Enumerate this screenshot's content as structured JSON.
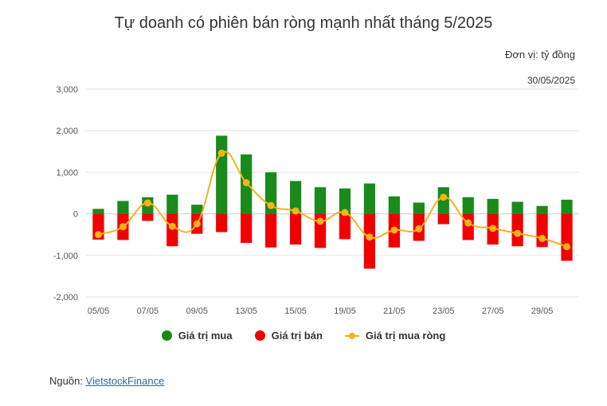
{
  "chart_data": {
    "type": "bar",
    "title": "Tự doanh có phiên bán ròng mạnh nhất tháng 5/2025",
    "unit_label": "Đơn vị: tỷ đồng",
    "date_label": "30/05/2025",
    "ylim": [
      -2000,
      3000
    ],
    "yticks": [
      -2000,
      -1000,
      0,
      1000,
      2000,
      3000
    ],
    "ytick_labels": [
      "-2,000",
      "-1,000",
      "0",
      "1,000",
      "2,000",
      "3,000"
    ],
    "x_tick_labels": [
      {
        "label": "05/05",
        "index": 0
      },
      {
        "label": "07/05",
        "index": 2
      },
      {
        "label": "09/05",
        "index": 4
      },
      {
        "label": "13/05",
        "index": 6
      },
      {
        "label": "15/05",
        "index": 8
      },
      {
        "label": "19/05",
        "index": 10
      },
      {
        "label": "21/05",
        "index": 12
      },
      {
        "label": "23/05",
        "index": 14
      },
      {
        "label": "27/05",
        "index": 16
      },
      {
        "label": "29/05",
        "index": 18
      }
    ],
    "categories": [
      "05/05",
      "06/05",
      "07/05",
      "08/05",
      "09/05",
      "12/05",
      "13/05",
      "14/05",
      "15/05",
      "16/05",
      "19/05",
      "20/05",
      "21/05",
      "22/05",
      "23/05",
      "26/05",
      "27/05",
      "28/05",
      "29/05",
      "30/05"
    ],
    "series": [
      {
        "name": "Giá trị mua",
        "type": "bar",
        "color": "#1a8a1a",
        "values": [
          120,
          310,
          400,
          460,
          220,
          1880,
          1430,
          1000,
          790,
          640,
          610,
          730,
          420,
          270,
          640,
          400,
          360,
          290,
          190,
          340
        ]
      },
      {
        "name": "Giá trị bán",
        "type": "bar",
        "color": "#f20000",
        "values": [
          -620,
          -630,
          -170,
          -780,
          -480,
          -440,
          -700,
          -810,
          -740,
          -820,
          -610,
          -1320,
          -810,
          -650,
          -250,
          -630,
          -740,
          -780,
          -800,
          -1130
        ]
      },
      {
        "name": "Giá trị mua ròng",
        "type": "line",
        "color": "#f5b21b",
        "values": [
          -500,
          -310,
          260,
          -300,
          -240,
          1460,
          750,
          200,
          70,
          -180,
          30,
          -560,
          -390,
          -360,
          400,
          -220,
          -350,
          -470,
          -590,
          -790
        ]
      }
    ],
    "legend_position": "bottom",
    "grid": true
  },
  "source": {
    "prefix": "Nguồn: ",
    "link_text": "VietstockFinance"
  }
}
